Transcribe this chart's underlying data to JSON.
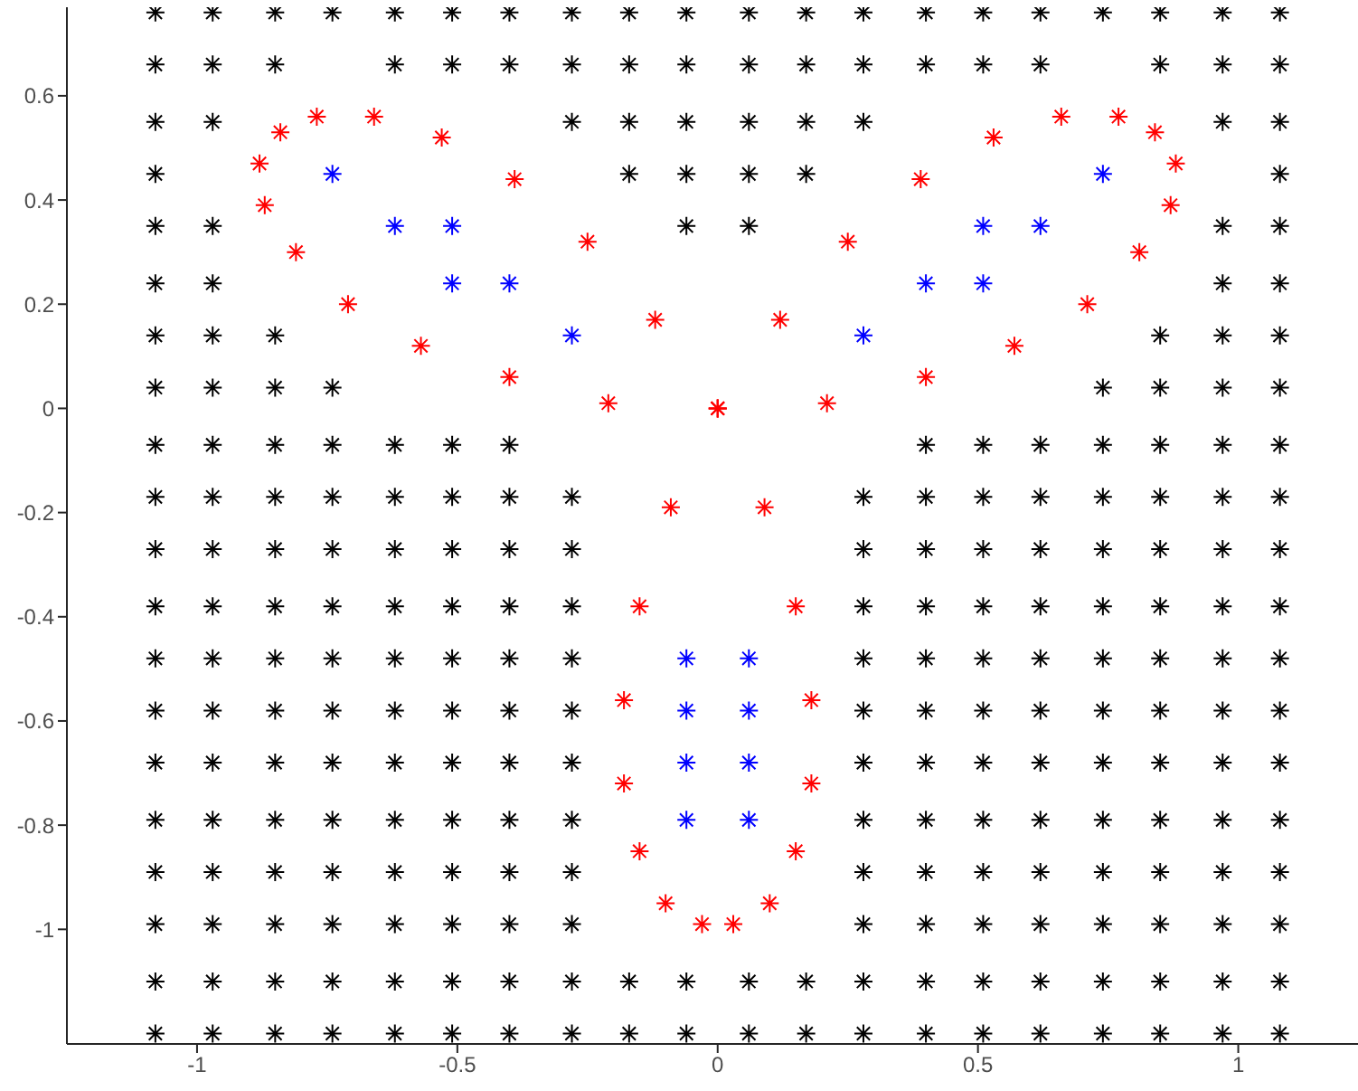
{
  "chart_data": {
    "type": "scatter",
    "marker": "cross",
    "xlim": [
      -1.25,
      1.23
    ],
    "ylim": [
      -1.22,
      0.77
    ],
    "xticks": [
      -1,
      -0.5,
      0,
      0.5,
      1
    ],
    "yticks": [
      -1,
      -0.8,
      -0.6,
      -0.4,
      -0.2,
      0,
      0.2,
      0.4,
      0.6
    ],
    "grid": false,
    "legend": false,
    "series": [
      {
        "color": "#000000",
        "x": [
          -1.08,
          -0.97,
          -0.85,
          -0.74,
          -0.62,
          -0.51,
          -0.4,
          -0.28,
          -0.17,
          -0.06,
          0.06,
          0.17,
          0.28,
          0.4,
          0.51,
          0.62,
          0.74,
          0.85,
          0.97,
          1.08,
          -1.08,
          -0.97,
          -0.85,
          -0.62,
          -0.51,
          -0.4,
          -0.28,
          -0.17,
          -0.06,
          0.06,
          0.17,
          0.28,
          0.4,
          0.51,
          0.62,
          0.85,
          0.97,
          1.08,
          -1.08,
          -0.97,
          -0.28,
          -0.17,
          -0.06,
          0.06,
          0.17,
          0.28,
          0.97,
          1.08,
          -1.08,
          -0.17,
          -0.06,
          0.06,
          0.17,
          1.08,
          -1.08,
          -0.97,
          -0.06,
          0.06,
          0.97,
          1.08,
          -1.08,
          -0.97,
          0.97,
          1.08,
          -1.08,
          -0.97,
          -0.85,
          0.85,
          0.97,
          1.08,
          -1.08,
          -0.97,
          -0.85,
          -0.74,
          0.74,
          0.85,
          0.97,
          1.08,
          -1.08,
          -0.97,
          -0.85,
          -0.74,
          -0.62,
          -0.51,
          -0.4,
          0.4,
          0.51,
          0.62,
          0.74,
          0.85,
          0.97,
          1.08,
          -1.08,
          -0.97,
          -0.85,
          -0.74,
          -0.62,
          -0.51,
          -0.4,
          -0.28,
          0.28,
          0.4,
          0.51,
          0.62,
          0.74,
          0.85,
          0.97,
          1.08,
          -1.08,
          -0.97,
          -0.85,
          -0.74,
          -0.62,
          -0.51,
          -0.4,
          -0.28,
          0.28,
          0.4,
          0.51,
          0.62,
          0.74,
          0.85,
          0.97,
          1.08,
          -1.08,
          -0.97,
          -0.85,
          -0.74,
          -0.62,
          -0.51,
          -0.4,
          -0.28,
          0.28,
          0.4,
          0.51,
          0.62,
          0.74,
          0.85,
          0.97,
          1.08,
          -1.08,
          -0.97,
          -0.85,
          -0.74,
          -0.62,
          -0.51,
          -0.4,
          -0.28,
          0.28,
          0.4,
          0.51,
          0.62,
          0.74,
          0.85,
          0.97,
          1.08,
          -1.08,
          -0.97,
          -0.85,
          -0.74,
          -0.62,
          -0.51,
          -0.4,
          -0.28,
          0.28,
          0.4,
          0.51,
          0.62,
          0.74,
          0.85,
          0.97,
          1.08,
          -1.08,
          -0.97,
          -0.85,
          -0.74,
          -0.62,
          -0.51,
          -0.4,
          -0.28,
          0.28,
          0.4,
          0.51,
          0.62,
          0.74,
          0.85,
          0.97,
          1.08,
          -1.08,
          -0.97,
          -0.85,
          -0.74,
          -0.62,
          -0.51,
          -0.4,
          -0.28,
          0.28,
          0.4,
          0.51,
          0.62,
          0.74,
          0.85,
          0.97,
          1.08,
          -1.08,
          -0.97,
          -0.85,
          -0.74,
          -0.62,
          -0.51,
          -0.4,
          -0.28,
          0.28,
          0.4,
          0.51,
          0.62,
          0.74,
          0.85,
          0.97,
          1.08,
          -1.08,
          -0.97,
          -0.85,
          -0.74,
          -0.62,
          -0.51,
          -0.4,
          -0.28,
          0.28,
          0.4,
          0.51,
          0.62,
          0.74,
          0.85,
          0.97,
          1.08,
          -1.08,
          -0.97,
          -0.85,
          -0.74,
          -0.62,
          -0.51,
          -0.4,
          -0.28,
          -0.17,
          -0.06,
          0.06,
          0.17,
          0.28,
          0.4,
          0.51,
          0.62,
          0.74,
          0.85,
          0.97,
          1.08,
          -1.08,
          -0.97,
          -0.85,
          -0.74,
          -0.62,
          -0.51,
          -0.4,
          -0.28,
          -0.17,
          -0.06,
          0.06,
          0.17,
          0.28,
          0.4,
          0.51,
          0.62,
          0.74,
          0.85,
          0.97,
          1.08
        ],
        "values": [
          0.76,
          0.76,
          0.76,
          0.76,
          0.76,
          0.76,
          0.76,
          0.76,
          0.76,
          0.76,
          0.76,
          0.76,
          0.76,
          0.76,
          0.76,
          0.76,
          0.76,
          0.76,
          0.76,
          0.76,
          0.66,
          0.66,
          0.66,
          0.66,
          0.66,
          0.66,
          0.66,
          0.66,
          0.66,
          0.66,
          0.66,
          0.66,
          0.66,
          0.66,
          0.66,
          0.66,
          0.66,
          0.66,
          0.55,
          0.55,
          0.55,
          0.55,
          0.55,
          0.55,
          0.55,
          0.55,
          0.55,
          0.55,
          0.45,
          0.45,
          0.45,
          0.45,
          0.45,
          0.45,
          0.35,
          0.35,
          0.35,
          0.35,
          0.35,
          0.35,
          0.24,
          0.24,
          0.24,
          0.24,
          0.14,
          0.14,
          0.14,
          0.14,
          0.14,
          0.14,
          0.04,
          0.04,
          0.04,
          0.04,
          0.04,
          0.04,
          0.04,
          0.04,
          -0.07,
          -0.07,
          -0.07,
          -0.07,
          -0.07,
          -0.07,
          -0.07,
          -0.07,
          -0.07,
          -0.07,
          -0.07,
          -0.07,
          -0.07,
          -0.07,
          -0.17,
          -0.17,
          -0.17,
          -0.17,
          -0.17,
          -0.17,
          -0.17,
          -0.17,
          -0.17,
          -0.17,
          -0.17,
          -0.17,
          -0.17,
          -0.17,
          -0.17,
          -0.17,
          -0.27,
          -0.27,
          -0.27,
          -0.27,
          -0.27,
          -0.27,
          -0.27,
          -0.27,
          -0.27,
          -0.27,
          -0.27,
          -0.27,
          -0.27,
          -0.27,
          -0.27,
          -0.27,
          -0.38,
          -0.38,
          -0.38,
          -0.38,
          -0.38,
          -0.38,
          -0.38,
          -0.38,
          -0.38,
          -0.38,
          -0.38,
          -0.38,
          -0.38,
          -0.38,
          -0.38,
          -0.38,
          -0.48,
          -0.48,
          -0.48,
          -0.48,
          -0.48,
          -0.48,
          -0.48,
          -0.48,
          -0.48,
          -0.48,
          -0.48,
          -0.48,
          -0.48,
          -0.48,
          -0.48,
          -0.48,
          -0.58,
          -0.58,
          -0.58,
          -0.58,
          -0.58,
          -0.58,
          -0.58,
          -0.58,
          -0.58,
          -0.58,
          -0.58,
          -0.58,
          -0.58,
          -0.58,
          -0.58,
          -0.58,
          -0.68,
          -0.68,
          -0.68,
          -0.68,
          -0.68,
          -0.68,
          -0.68,
          -0.68,
          -0.68,
          -0.68,
          -0.68,
          -0.68,
          -0.68,
          -0.68,
          -0.68,
          -0.68,
          -0.79,
          -0.79,
          -0.79,
          -0.79,
          -0.79,
          -0.79,
          -0.79,
          -0.79,
          -0.79,
          -0.79,
          -0.79,
          -0.79,
          -0.79,
          -0.79,
          -0.79,
          -0.79,
          -0.89,
          -0.89,
          -0.89,
          -0.89,
          -0.89,
          -0.89,
          -0.89,
          -0.89,
          -0.89,
          -0.89,
          -0.89,
          -0.89,
          -0.89,
          -0.89,
          -0.89,
          -0.89,
          -0.99,
          -0.99,
          -0.99,
          -0.99,
          -0.99,
          -0.99,
          -0.99,
          -0.99,
          -0.99,
          -0.99,
          -0.99,
          -0.99,
          -0.99,
          -0.99,
          -0.99,
          -0.99,
          -1.1,
          -1.1,
          -1.1,
          -1.1,
          -1.1,
          -1.1,
          -1.1,
          -1.1,
          -1.1,
          -1.1,
          -1.1,
          -1.1,
          -1.1,
          -1.1,
          -1.1,
          -1.1,
          -1.1,
          -1.1,
          -1.1,
          -1.1,
          -1.2,
          -1.2,
          -1.2,
          -1.2,
          -1.2,
          -1.2,
          -1.2,
          -1.2,
          -1.2,
          -1.2,
          -1.2,
          -1.2,
          -1.2,
          -1.2,
          -1.2,
          -1.2,
          -1.2,
          -1.2,
          -1.2,
          -1.2
        ]
      },
      {
        "color": "#ff0000",
        "x": [
          0,
          0.21,
          0.4,
          0.57,
          0.71,
          0.81,
          0.87,
          0.88,
          0.84,
          0.77,
          0.66,
          0.53,
          0.39,
          0.25,
          0.12,
          0,
          -0.09,
          -0.15,
          -0.18,
          -0.18,
          -0.15,
          -0.1,
          -0.03,
          0.03,
          0.1,
          0.15,
          0.18,
          0.18,
          0.15,
          0.09,
          0,
          -0.12,
          -0.25,
          -0.39,
          -0.53,
          -0.66,
          -0.77,
          -0.84,
          -0.88,
          -0.87,
          -0.81,
          -0.71,
          -0.57,
          -0.4,
          -0.21
        ],
        "values": [
          0,
          0.01,
          0.06,
          0.12,
          0.2,
          0.3,
          0.39,
          0.47,
          0.53,
          0.56,
          0.56,
          0.52,
          0.44,
          0.32,
          0.17,
          0,
          -0.19,
          -0.38,
          -0.56,
          -0.72,
          -0.85,
          -0.95,
          -0.99,
          -0.99,
          -0.95,
          -0.85,
          -0.72,
          -0.56,
          -0.38,
          -0.19,
          0,
          0.17,
          0.32,
          0.44,
          0.52,
          0.56,
          0.56,
          0.53,
          0.47,
          0.39,
          0.3,
          0.2,
          0.12,
          0.06,
          0.01
        ]
      },
      {
        "color": "#0000ff",
        "x": [
          -0.74,
          0.74,
          -0.62,
          -0.51,
          0.51,
          0.62,
          -0.51,
          -0.4,
          0.4,
          0.51,
          -0.28,
          0.28,
          -0.06,
          0.06,
          -0.06,
          0.06,
          -0.06,
          0.06,
          -0.06,
          0.06
        ],
        "values": [
          0.45,
          0.45,
          0.35,
          0.35,
          0.35,
          0.35,
          0.24,
          0.24,
          0.24,
          0.24,
          0.14,
          0.14,
          -0.48,
          -0.48,
          -0.58,
          -0.58,
          -0.68,
          -0.68,
          -0.79,
          -0.79
        ]
      }
    ]
  }
}
